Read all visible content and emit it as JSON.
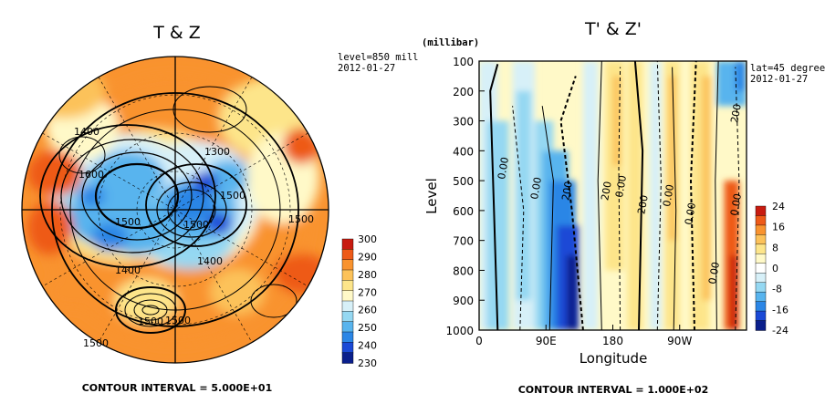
{
  "colors": {
    "palette": [
      "#0a1f8c",
      "#1a49d6",
      "#2b86e6",
      "#58b4ee",
      "#95d8f2",
      "#d7f0f8",
      "#ffffff",
      "#fff9c8",
      "#fde58a",
      "#fcc25a",
      "#f9932f",
      "#ee5a18",
      "#c81b10"
    ]
  },
  "left_panel": {
    "title": "T & Z",
    "info_line1": "level=850 mill",
    "info_line2": "2012-01-27",
    "footer": "CONTOUR INTERVAL = 5.000E+01",
    "contour_labels": [
      "1300",
      "1400",
      "1500",
      "1500",
      "1500",
      "1500",
      "1600",
      "1500",
      "1400",
      "1400",
      "1500",
      "1500"
    ]
  },
  "right_panel": {
    "title": "T' & Z'",
    "unit_label": "(millibar)",
    "info_line1": "lat=45 degree",
    "info_line2": "2012-01-27",
    "footer": "CONTOUR INTERVAL = 1.000E+02",
    "contour_labels": [
      "0.00",
      "0.00",
      "200",
      "200",
      "0.00",
      "200",
      "0.00",
      "0.00",
      "0.00",
      "0.00",
      "200"
    ]
  },
  "chart_data": [
    {
      "type": "heatmap",
      "projection": "north-polar-stereographic",
      "title": "T & Z",
      "annotations": [
        "level=850 mill",
        "2012-01-27"
      ],
      "colorbar": {
        "ticks": [
          300,
          290,
          280,
          270,
          260,
          250,
          240,
          230
        ],
        "range": [
          230,
          300
        ]
      },
      "contours": {
        "variable": "Z",
        "interval": 50,
        "labels": [
          1300,
          1400,
          1500,
          1600
        ]
      }
    },
    {
      "type": "heatmap",
      "title": "T' & Z'",
      "xlabel": "Longitude",
      "ylabel": "Level",
      "y_unit": "(millibar)",
      "xlim": [
        0,
        360
      ],
      "ylim": [
        1000,
        100
      ],
      "x_ticks": [
        "0",
        "90E",
        "180",
        "90W"
      ],
      "y_ticks": [
        "100",
        "200",
        "300",
        "400",
        "500",
        "600",
        "700",
        "800",
        "900",
        "1000"
      ],
      "annotations": [
        "lat=45 degree",
        "2012-01-27"
      ],
      "colorbar": {
        "ticks": [
          "24",
          "16",
          "8",
          "0",
          "-8",
          "-16",
          "-24"
        ],
        "range": [
          -24,
          24
        ]
      },
      "contours": {
        "variable": "Z'",
        "interval": 100,
        "labels": [
          0,
          200
        ]
      }
    }
  ]
}
